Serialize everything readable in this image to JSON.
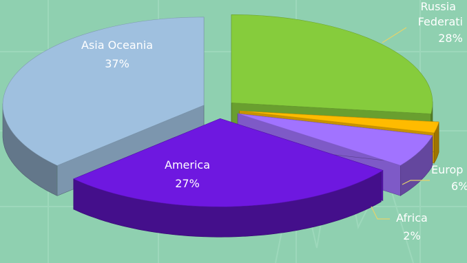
{
  "colors": {
    "background": "#8fd0b0",
    "label_text": "#ffffff"
  },
  "chart_data": {
    "type": "pie",
    "style": "3d-exploded",
    "labels": [
      "Asia Oceania",
      "Russia Federation",
      "Europe",
      "Africa",
      "America"
    ],
    "values": [
      37,
      28,
      6,
      2,
      27
    ],
    "value_labels": [
      "37%",
      "28%",
      "6%",
      "2%",
      "27%"
    ],
    "colors": [
      "#9fc0df",
      "#6e18e0",
      "#a173ff",
      "#ffbb00",
      "#86cc3c"
    ],
    "title": "",
    "legend": "none"
  },
  "labels": {
    "asia": {
      "name": "Asia Oceania",
      "pct": "37%"
    },
    "russia": {
      "name1": "Russia",
      "name2": "Federati",
      "pct": "28%"
    },
    "europe": {
      "name": "Europ",
      "pct": "6%"
    },
    "africa": {
      "name": "Africa",
      "pct": "2%"
    },
    "america": {
      "name": "America",
      "pct": "27%"
    }
  }
}
